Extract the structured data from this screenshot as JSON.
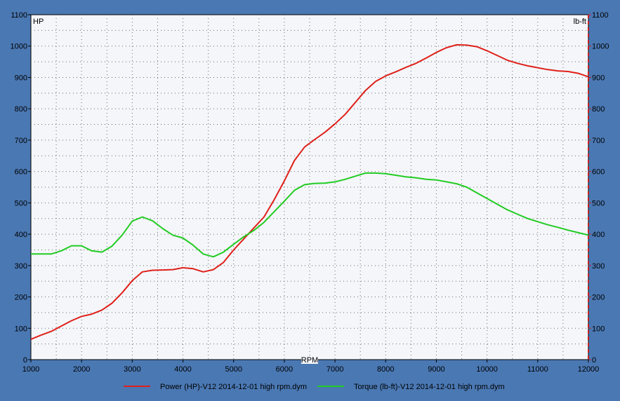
{
  "colors": {
    "background": "#4a78b3",
    "plot_background": "#f4f6fa",
    "grid": "#6a6a6a",
    "power": "#e0201a",
    "torque": "#22cc22",
    "right_axis": "#cc2020"
  },
  "chart_data": {
    "type": "line",
    "xlabel": "RPM",
    "ylabel_left": "HP",
    "ylabel_right": "lb-ft",
    "xlim": [
      1000,
      12000
    ],
    "ylim": [
      0,
      1100
    ],
    "x_ticks": [
      "1000",
      "2000",
      "3000",
      "4000",
      "5000",
      "6000",
      "7000",
      "8000",
      "9000",
      "10000",
      "11000",
      "12000"
    ],
    "y_ticks": [
      "0",
      "100",
      "200",
      "300",
      "400",
      "500",
      "600",
      "700",
      "800",
      "900",
      "1000",
      "1100"
    ],
    "y_ticks_right": [
      "0",
      "100",
      "200",
      "300",
      "400",
      "500",
      "600",
      "700",
      "800",
      "900",
      "1000",
      "1100"
    ],
    "grid": true,
    "legend_position": "bottom",
    "series": [
      {
        "name": "Power (HP)-V12 2014-12-01 high rpm.dym",
        "color": "#e0201a",
        "points": [
          [
            1000,
            65
          ],
          [
            1200,
            78
          ],
          [
            1400,
            90
          ],
          [
            1600,
            107
          ],
          [
            1800,
            124
          ],
          [
            2000,
            138
          ],
          [
            2200,
            145
          ],
          [
            2400,
            158
          ],
          [
            2600,
            180
          ],
          [
            2800,
            213
          ],
          [
            3000,
            252
          ],
          [
            3200,
            280
          ],
          [
            3400,
            285
          ],
          [
            3600,
            286
          ],
          [
            3800,
            287
          ],
          [
            4000,
            293
          ],
          [
            4200,
            290
          ],
          [
            4400,
            280
          ],
          [
            4600,
            287
          ],
          [
            4800,
            310
          ],
          [
            5000,
            350
          ],
          [
            5200,
            385
          ],
          [
            5400,
            420
          ],
          [
            5600,
            455
          ],
          [
            5800,
            510
          ],
          [
            6000,
            570
          ],
          [
            6200,
            635
          ],
          [
            6400,
            678
          ],
          [
            6600,
            702
          ],
          [
            6800,
            725
          ],
          [
            7000,
            752
          ],
          [
            7200,
            782
          ],
          [
            7400,
            820
          ],
          [
            7600,
            858
          ],
          [
            7800,
            887
          ],
          [
            8000,
            905
          ],
          [
            8200,
            918
          ],
          [
            8400,
            932
          ],
          [
            8600,
            945
          ],
          [
            8800,
            962
          ],
          [
            9000,
            980
          ],
          [
            9200,
            995
          ],
          [
            9400,
            1004
          ],
          [
            9600,
            1003
          ],
          [
            9800,
            998
          ],
          [
            10000,
            985
          ],
          [
            10200,
            970
          ],
          [
            10400,
            955
          ],
          [
            10600,
            945
          ],
          [
            10800,
            937
          ],
          [
            11000,
            931
          ],
          [
            11200,
            925
          ],
          [
            11400,
            921
          ],
          [
            11600,
            919
          ],
          [
            11800,
            913
          ],
          [
            12000,
            902
          ]
        ]
      },
      {
        "name": "Torque (lb-ft)-V12 2014-12-01 high rpm.dym",
        "color": "#22cc22",
        "points": [
          [
            1000,
            337
          ],
          [
            1200,
            337
          ],
          [
            1400,
            337
          ],
          [
            1600,
            347
          ],
          [
            1800,
            363
          ],
          [
            2000,
            363
          ],
          [
            2200,
            347
          ],
          [
            2400,
            343
          ],
          [
            2600,
            362
          ],
          [
            2800,
            397
          ],
          [
            3000,
            442
          ],
          [
            3200,
            455
          ],
          [
            3400,
            443
          ],
          [
            3600,
            418
          ],
          [
            3800,
            397
          ],
          [
            4000,
            388
          ],
          [
            4200,
            365
          ],
          [
            4400,
            337
          ],
          [
            4600,
            328
          ],
          [
            4800,
            343
          ],
          [
            5000,
            368
          ],
          [
            5200,
            392
          ],
          [
            5400,
            412
          ],
          [
            5600,
            438
          ],
          [
            5800,
            472
          ],
          [
            6000,
            505
          ],
          [
            6200,
            540
          ],
          [
            6400,
            558
          ],
          [
            6600,
            562
          ],
          [
            6800,
            563
          ],
          [
            7000,
            567
          ],
          [
            7200,
            575
          ],
          [
            7400,
            585
          ],
          [
            7600,
            595
          ],
          [
            7800,
            595
          ],
          [
            8000,
            593
          ],
          [
            8200,
            588
          ],
          [
            8400,
            583
          ],
          [
            8600,
            580
          ],
          [
            8800,
            575
          ],
          [
            9000,
            573
          ],
          [
            9200,
            567
          ],
          [
            9400,
            561
          ],
          [
            9600,
            550
          ],
          [
            9800,
            532
          ],
          [
            10000,
            514
          ],
          [
            10200,
            496
          ],
          [
            10400,
            478
          ],
          [
            10600,
            464
          ],
          [
            10800,
            450
          ],
          [
            11000,
            440
          ],
          [
            11200,
            430
          ],
          [
            11400,
            422
          ],
          [
            11600,
            413
          ],
          [
            11800,
            405
          ],
          [
            12000,
            397
          ]
        ]
      }
    ]
  }
}
